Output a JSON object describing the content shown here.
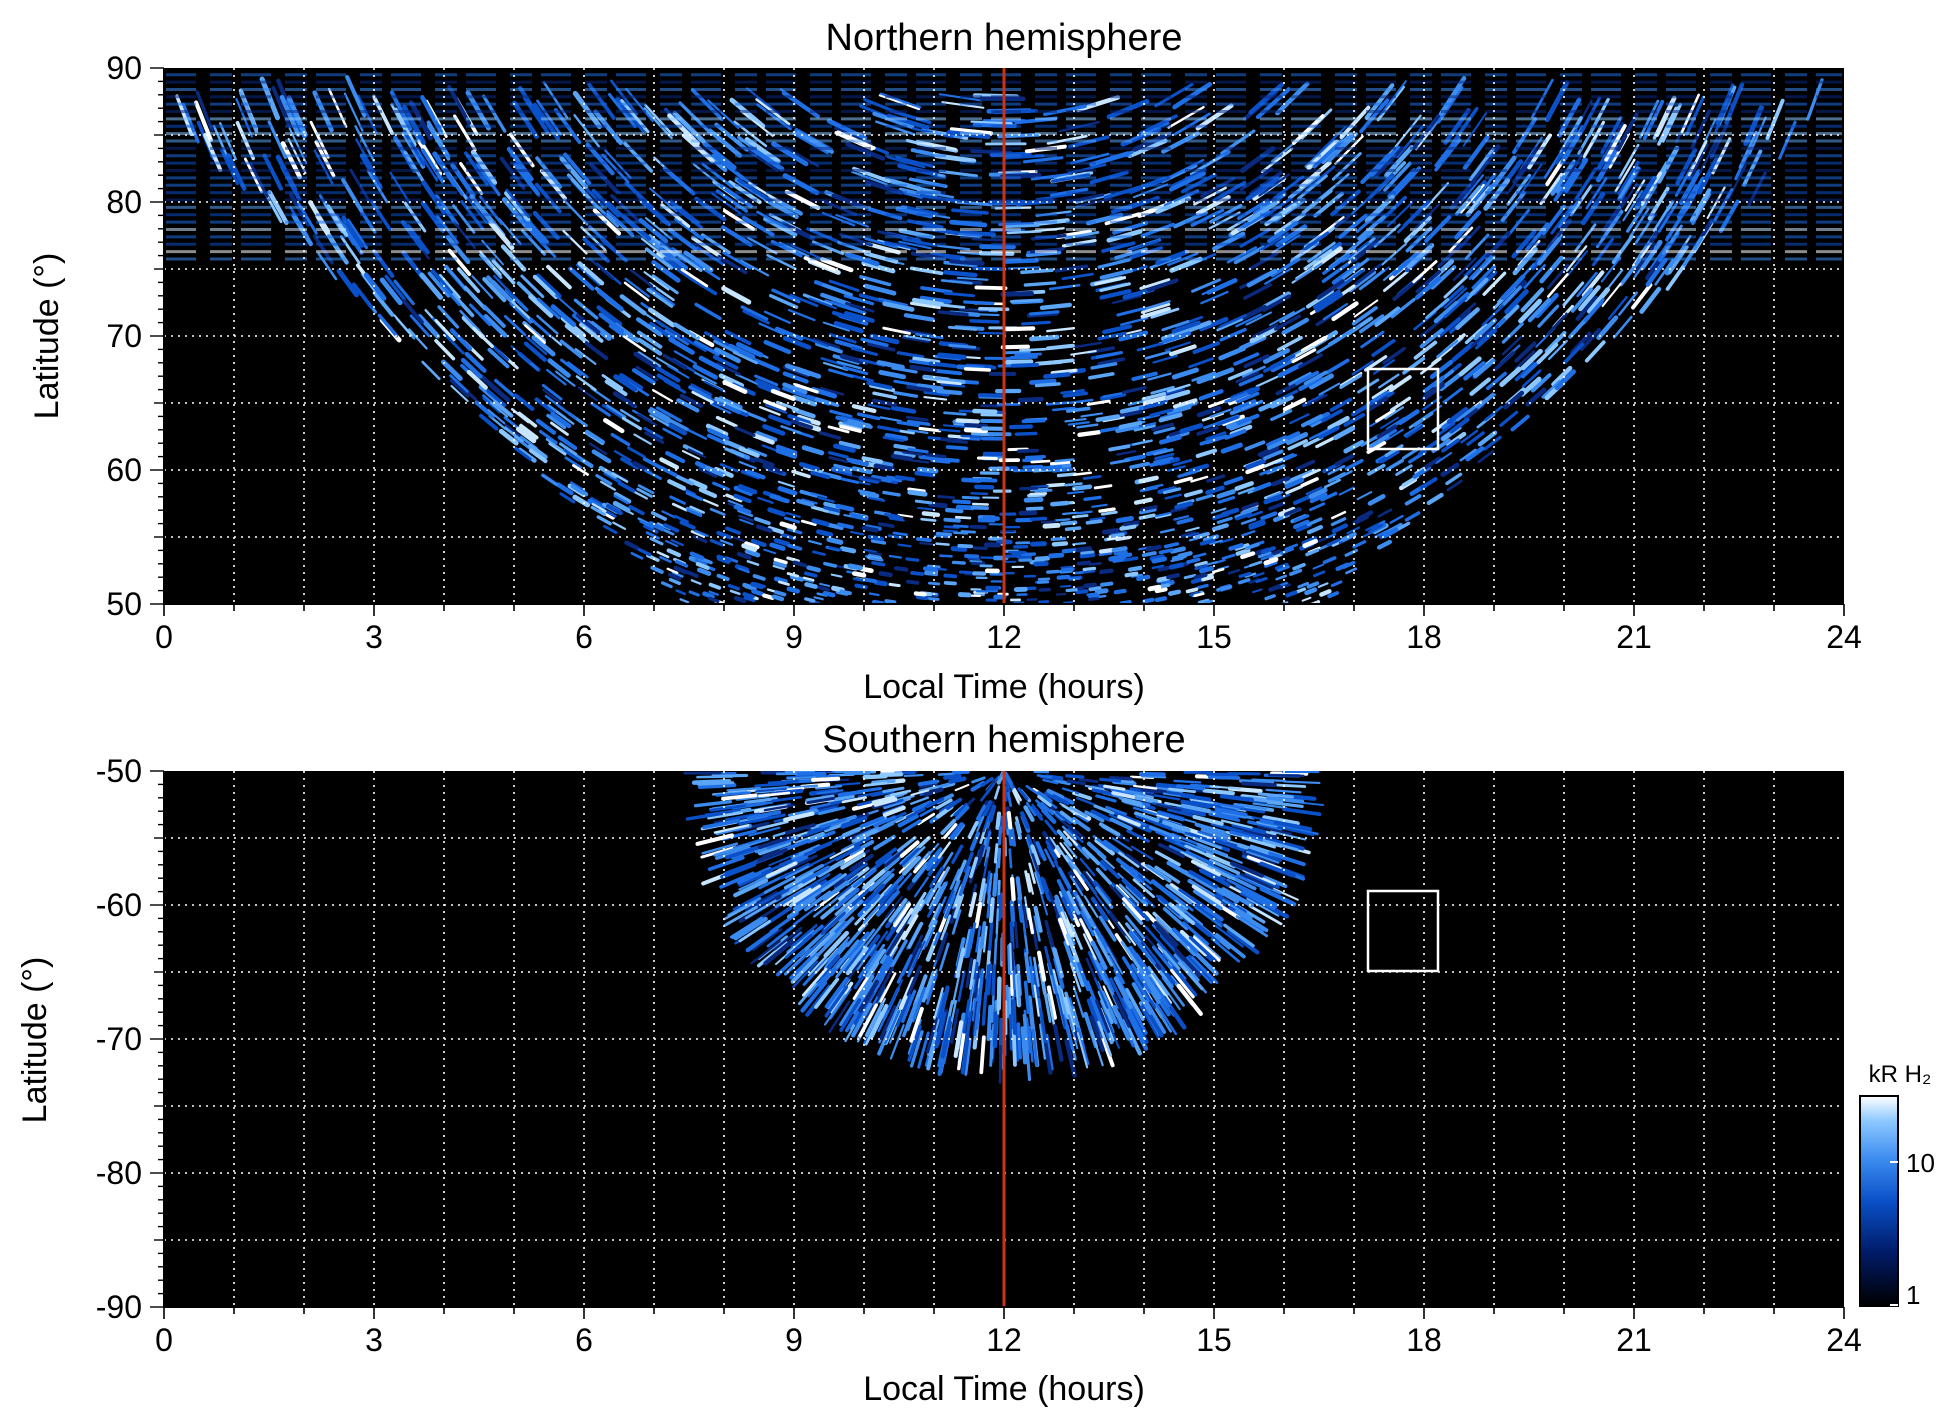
{
  "chart_data": [
    {
      "type": "heatmap",
      "title": "Northern hemisphere",
      "xlabel": "Local Time (hours)",
      "ylabel": "Latitude (°)",
      "xlim": [
        0,
        24
      ],
      "ylim": [
        50,
        90
      ],
      "xticks": [
        "0",
        "3",
        "6",
        "9",
        "12",
        "15",
        "18",
        "21",
        "24"
      ],
      "yticks": [
        "50",
        "60",
        "70",
        "80",
        "90"
      ],
      "grid": true,
      "background": "#000000",
      "marker_line": {
        "x": 12,
        "color": "#cc3311"
      },
      "box": {
        "x": [
          17.2,
          18.2
        ],
        "y": [
          61.5,
          67.5
        ],
        "color": "#ffffff"
      },
      "emission_region": {
        "outer_lat": 50,
        "pole_lat": 90,
        "mlt_range": [
          4.5,
          19.5
        ],
        "center_mlt": 12
      }
    },
    {
      "type": "heatmap",
      "title": "Southern hemisphere",
      "xlabel": "Local Time (hours)",
      "ylabel": "Latitude (°)",
      "xlim": [
        0,
        24
      ],
      "ylim": [
        -90,
        -50
      ],
      "xticks": [
        "0",
        "3",
        "6",
        "9",
        "12",
        "15",
        "18",
        "21",
        "24"
      ],
      "yticks": [
        "-50",
        "-60",
        "-70",
        "-80",
        "-90"
      ],
      "grid": true,
      "background": "#000000",
      "marker_line": {
        "x": 12,
        "color": "#cc3311"
      },
      "box": {
        "x": [
          17.2,
          18.2
        ],
        "y": [
          -65,
          -59
        ],
        "color": "#ffffff"
      },
      "emission_region": {
        "edge_lat": -50,
        "lowest_lat": -72,
        "mlt_range": [
          7.8,
          16.5
        ],
        "center_mlt": 12
      },
      "colorbar": {
        "title": "kR H₂",
        "scale": "log",
        "range": [
          1,
          30
        ],
        "ticks": [
          "1",
          "10"
        ],
        "colors": [
          "#000000",
          "#001a66",
          "#0a50c8",
          "#3c8cf0",
          "#8cc8ff",
          "#ffffff"
        ]
      }
    }
  ]
}
